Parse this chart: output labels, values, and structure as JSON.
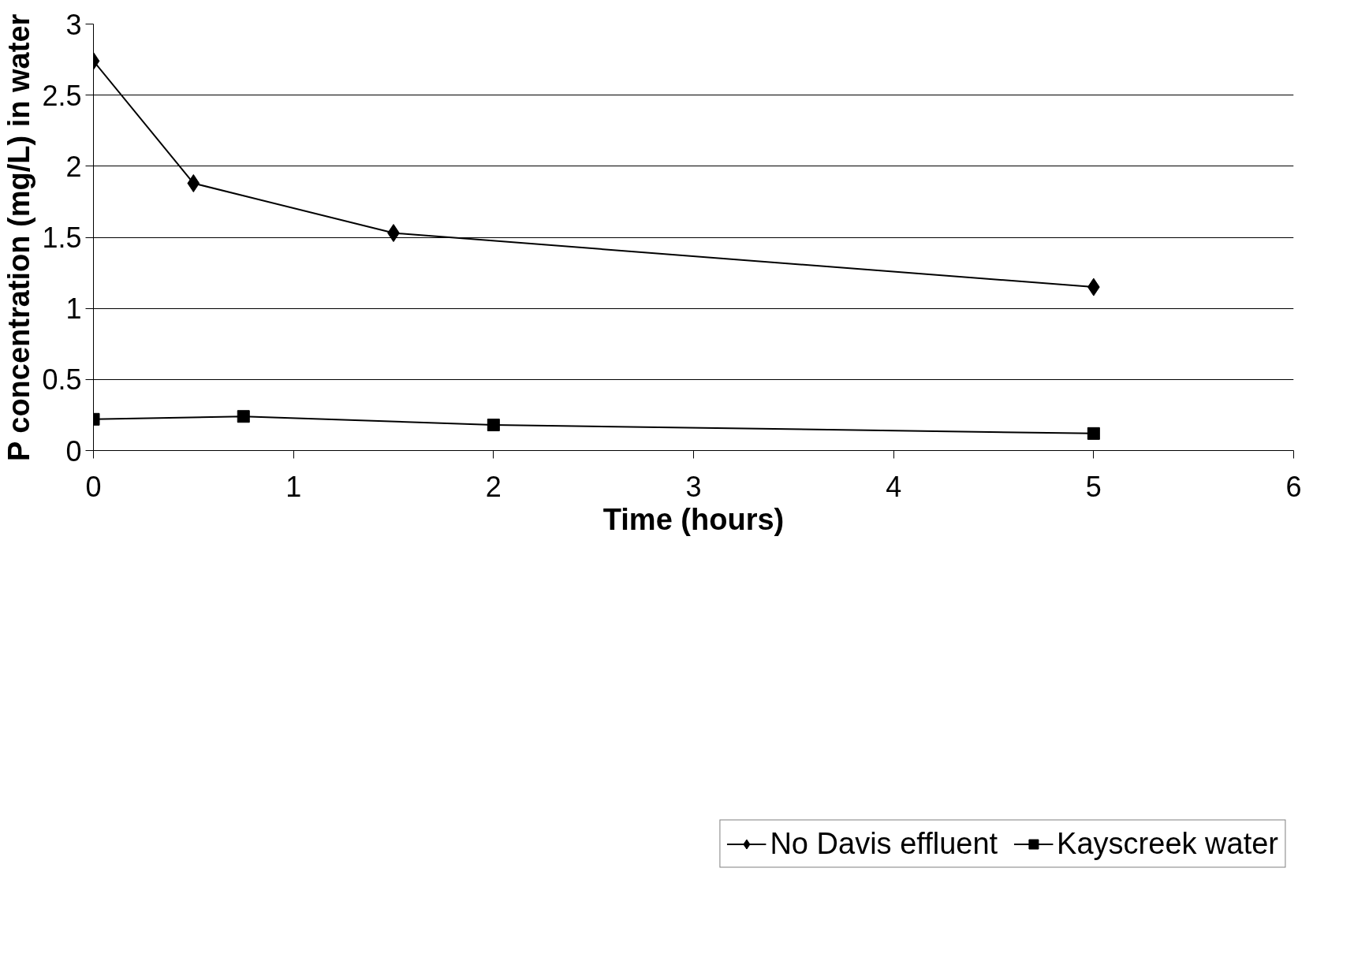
{
  "chart_data": {
    "type": "line",
    "xlabel": "Time (hours)",
    "ylabel": "P concentration (mg/L) in water",
    "xlim": [
      0,
      6
    ],
    "xticks": [
      0,
      1,
      2,
      3,
      4,
      5,
      6
    ],
    "ylim": [
      0,
      3
    ],
    "yticks": [
      0,
      0.5,
      1,
      1.5,
      2,
      2.5,
      3
    ],
    "grid": "y",
    "legend": "bottom right",
    "series": [
      {
        "name": "No Davis effluent",
        "color": "#000000",
        "marker": "diamond",
        "x": [
          0,
          0.5,
          1.5,
          5
        ],
        "values": [
          2.74,
          1.88,
          1.53,
          1.15
        ]
      },
      {
        "name": "Kayscreek water",
        "color": "#000000",
        "marker": "square",
        "x": [
          0,
          0.75,
          2,
          5
        ],
        "values": [
          0.22,
          0.24,
          0.18,
          0.12
        ]
      }
    ]
  }
}
